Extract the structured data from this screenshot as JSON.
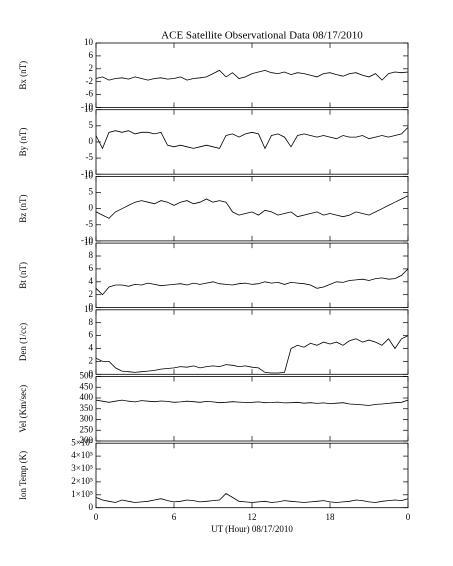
{
  "chart_data": [
    {
      "type": "line",
      "title": "ACE Satellite Observational Data   08/17/2010",
      "ylabel": "Bx (nT)",
      "color": "#000000",
      "xlim": [
        0,
        24
      ],
      "ylim": [
        -10,
        10
      ],
      "yticks": [
        -10,
        -6,
        -2,
        2,
        6,
        10
      ],
      "x": [
        0,
        0.5,
        1,
        1.5,
        2,
        2.5,
        3,
        3.5,
        4,
        4.5,
        5,
        5.5,
        6,
        6.5,
        7,
        7.5,
        8,
        8.5,
        9,
        9.5,
        10,
        10.5,
        11,
        11.5,
        12,
        12.5,
        13,
        13.5,
        14,
        14.5,
        15,
        15.5,
        16,
        16.5,
        17,
        17.5,
        18,
        18.5,
        19,
        19.5,
        20,
        20.5,
        21,
        21.5,
        22,
        22.5,
        23,
        23.5,
        24
      ],
      "values": [
        -1,
        -0.5,
        -1.5,
        -1,
        -0.8,
        -1.2,
        -0.5,
        -1,
        -1.5,
        -1,
        -0.8,
        -1.2,
        -1,
        -0.5,
        -1.5,
        -1,
        -0.8,
        -0.5,
        0.5,
        1.5,
        -0.5,
        0.8,
        -1,
        -0.5,
        0.5,
        1,
        1.5,
        0.8,
        0.5,
        1,
        0.2,
        0.8,
        0.5,
        0,
        -0.5,
        0.5,
        0.8,
        0.2,
        -0.3,
        0.5,
        0.8,
        0,
        -0.5,
        0.5,
        -1.5,
        0.5,
        1,
        0.8,
        1
      ]
    },
    {
      "type": "line",
      "ylabel": "By (nT)",
      "color": "#000000",
      "xlim": [
        0,
        24
      ],
      "ylim": [
        -10,
        10
      ],
      "yticks": [
        -10,
        -5,
        0,
        5,
        10
      ],
      "x": [
        0,
        0.5,
        1,
        1.5,
        2,
        2.5,
        3,
        3.5,
        4,
        4.5,
        5,
        5.5,
        6,
        6.5,
        7,
        7.5,
        8,
        8.5,
        9,
        9.5,
        10,
        10.5,
        11,
        11.5,
        12,
        12.5,
        13,
        13.5,
        14,
        14.5,
        15,
        15.5,
        16,
        16.5,
        17,
        17.5,
        18,
        18.5,
        19,
        19.5,
        20,
        20.5,
        21,
        21.5,
        22,
        22.5,
        23,
        23.5,
        24
      ],
      "values": [
        2,
        -2,
        3,
        3.5,
        3,
        3.5,
        2.5,
        3,
        3,
        2.5,
        3,
        -1,
        -1.5,
        -1,
        -1.5,
        -2,
        -1.5,
        -1,
        -1.5,
        -2,
        2,
        2.5,
        1.5,
        2.5,
        3,
        2.5,
        -2,
        2,
        2.5,
        1.5,
        -1.5,
        2,
        2.5,
        2,
        1.5,
        2,
        1.5,
        1,
        2,
        1.5,
        1.5,
        2,
        1,
        1.5,
        2,
        1.5,
        2,
        2.5,
        4.5
      ]
    },
    {
      "type": "line",
      "ylabel": "Bz (nT)",
      "color": "#000000",
      "xlim": [
        0,
        24
      ],
      "ylim": [
        -10,
        10
      ],
      "yticks": [
        -10,
        -5,
        0,
        5,
        10
      ],
      "x": [
        0,
        0.5,
        1,
        1.5,
        2,
        2.5,
        3,
        3.5,
        4,
        4.5,
        5,
        5.5,
        6,
        6.5,
        7,
        7.5,
        8,
        8.5,
        9,
        9.5,
        10,
        10.5,
        11,
        11.5,
        12,
        12.5,
        13,
        13.5,
        14,
        14.5,
        15,
        15.5,
        16,
        16.5,
        17,
        17.5,
        18,
        18.5,
        19,
        19.5,
        20,
        20.5,
        21,
        21.5,
        22,
        22.5,
        23,
        23.5,
        24
      ],
      "values": [
        -1,
        -2,
        -3,
        -1,
        0,
        1,
        2,
        2.5,
        2,
        1.5,
        2.5,
        2,
        1,
        2,
        2.5,
        1.5,
        2,
        3,
        2,
        2.5,
        2,
        -1,
        -2,
        -1.5,
        -1,
        -2,
        -0.5,
        -1,
        -2,
        -1.5,
        -1,
        -2.5,
        -2,
        -1.5,
        -1,
        -2,
        -1.5,
        -2,
        -2.5,
        -2,
        -1,
        -1.5,
        -2,
        -1,
        0,
        1,
        2,
        3,
        4
      ]
    },
    {
      "type": "line",
      "ylabel": "Bt (nT)",
      "color": "#000000",
      "xlim": [
        0,
        24
      ],
      "ylim": [
        0,
        10
      ],
      "yticks": [
        0,
        2,
        4,
        6,
        8,
        10
      ],
      "x": [
        0,
        0.5,
        1,
        1.5,
        2,
        2.5,
        3,
        3.5,
        4,
        4.5,
        5,
        5.5,
        6,
        6.5,
        7,
        7.5,
        8,
        8.5,
        9,
        9.5,
        10,
        10.5,
        11,
        11.5,
        12,
        12.5,
        13,
        13.5,
        14,
        14.5,
        15,
        15.5,
        16,
        16.5,
        17,
        17.5,
        18,
        18.5,
        19,
        19.5,
        20,
        20.5,
        21,
        21.5,
        22,
        22.5,
        23,
        23.5,
        24
      ],
      "values": [
        3,
        2,
        3.2,
        3.5,
        3.5,
        3.3,
        3.6,
        3.5,
        3.8,
        3.6,
        3.4,
        3.5,
        3.6,
        3.7,
        3.5,
        3.8,
        3.6,
        3.8,
        4,
        3.7,
        3.6,
        3.5,
        3.7,
        3.8,
        3.6,
        3.7,
        4,
        3.8,
        3.9,
        3.6,
        3.9,
        3.8,
        3.7,
        3.5,
        3,
        3.2,
        3.6,
        4,
        3.9,
        4.2,
        4.3,
        4.4,
        4.2,
        4.5,
        4.6,
        4.4,
        4.5,
        5,
        6
      ]
    },
    {
      "type": "line",
      "ylabel": "Den (1/cc)",
      "color": "#000000",
      "xlim": [
        0,
        24
      ],
      "ylim": [
        0,
        10
      ],
      "yticks": [
        0,
        2,
        4,
        6,
        8,
        10
      ],
      "x": [
        0,
        0.5,
        1,
        1.5,
        2,
        2.5,
        3,
        3.5,
        4,
        4.5,
        5,
        5.5,
        6,
        6.5,
        7,
        7.5,
        8,
        8.5,
        9,
        9.5,
        10,
        10.5,
        11,
        11.5,
        12,
        12.5,
        13,
        13.5,
        14,
        14.5,
        15,
        15.5,
        16,
        16.5,
        17,
        17.5,
        18,
        18.5,
        19,
        19.5,
        20,
        20.5,
        21,
        21.5,
        22,
        22.5,
        23,
        23.5,
        24
      ],
      "values": [
        2.5,
        2,
        2,
        1,
        0.5,
        0.4,
        0.3,
        0.4,
        0.5,
        0.6,
        0.8,
        0.9,
        1,
        1.2,
        1.1,
        1.3,
        1,
        1.2,
        1.3,
        1.2,
        1.5,
        1.4,
        1.2,
        1.3,
        1.1,
        1,
        0.3,
        0.2,
        0.2,
        0.3,
        4,
        4.5,
        4.2,
        4.8,
        4.5,
        5,
        4.7,
        5,
        4.5,
        5.2,
        5.5,
        5,
        5.3,
        5,
        4.5,
        5.5,
        4,
        5.5,
        6
      ]
    },
    {
      "type": "line",
      "ylabel": "Vel (Km/sec)",
      "color": "#000000",
      "xlim": [
        0,
        24
      ],
      "ylim": [
        200,
        500
      ],
      "yticks": [
        200,
        250,
        300,
        350,
        400,
        450,
        500
      ],
      "x": [
        0,
        0.5,
        1,
        1.5,
        2,
        2.5,
        3,
        3.5,
        4,
        4.5,
        5,
        5.5,
        6,
        6.5,
        7,
        7.5,
        8,
        8.5,
        9,
        9.5,
        10,
        10.5,
        11,
        11.5,
        12,
        12.5,
        13,
        13.5,
        14,
        14.5,
        15,
        15.5,
        16,
        16.5,
        17,
        17.5,
        18,
        18.5,
        19,
        19.5,
        20,
        20.5,
        21,
        21.5,
        22,
        22.5,
        23,
        23.5,
        24
      ],
      "values": [
        390,
        385,
        380,
        385,
        390,
        385,
        382,
        388,
        385,
        383,
        386,
        384,
        380,
        382,
        385,
        383,
        380,
        384,
        382,
        378,
        380,
        383,
        381,
        379,
        380,
        382,
        378,
        379,
        381,
        377,
        378,
        380,
        376,
        378,
        375,
        377,
        374,
        376,
        378,
        372,
        370,
        368,
        365,
        370,
        372,
        375,
        378,
        380,
        390
      ]
    },
    {
      "type": "line",
      "ylabel": "Ion Temp (K)",
      "xlabel": "UT (Hour)   08/17/2010",
      "color": "#000000",
      "xlim": [
        0,
        24
      ],
      "xticks": [
        0,
        6,
        12,
        18,
        {
          "value": 24,
          "label": "0"
        }
      ],
      "ylim": [
        0,
        500000
      ],
      "yticks": [
        0,
        {
          "value": 100000,
          "label": "1×10⁵"
        },
        {
          "value": 200000,
          "label": "2×10⁵"
        },
        {
          "value": 300000,
          "label": "3×10⁵"
        },
        {
          "value": 400000,
          "label": "4×10⁵"
        },
        {
          "value": 500000,
          "label": "5×10⁵"
        }
      ],
      "x": [
        0,
        0.5,
        1,
        1.5,
        2,
        2.5,
        3,
        3.5,
        4,
        4.5,
        5,
        5.5,
        6,
        6.5,
        7,
        7.5,
        8,
        8.5,
        9,
        9.5,
        10,
        10.5,
        11,
        11.5,
        12,
        12.5,
        13,
        13.5,
        14,
        14.5,
        15,
        15.5,
        16,
        16.5,
        17,
        17.5,
        18,
        18.5,
        19,
        19.5,
        20,
        20.5,
        21,
        21.5,
        22,
        22.5,
        23,
        23.5,
        24
      ],
      "values": [
        80000,
        60000,
        50000,
        40000,
        60000,
        50000,
        40000,
        45000,
        50000,
        60000,
        70000,
        55000,
        45000,
        50000,
        60000,
        55000,
        45000,
        50000,
        55000,
        60000,
        110000,
        80000,
        50000,
        45000,
        40000,
        45000,
        50000,
        40000,
        45000,
        55000,
        50000,
        45000,
        40000,
        45000,
        50000,
        55000,
        45000,
        40000,
        45000,
        50000,
        60000,
        55000,
        45000,
        40000,
        50000,
        55000,
        60000,
        55000,
        70000
      ]
    }
  ]
}
